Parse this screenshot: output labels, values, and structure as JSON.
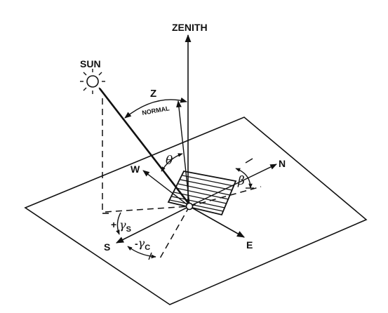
{
  "figure": {
    "labels": {
      "zenith": "ZENITH",
      "sun": "SUN",
      "zenith_angle": "Z",
      "normal": "NORMAL",
      "theta": "θ",
      "beta": "β",
      "west": "W",
      "north": "N",
      "south": "S",
      "east": "E",
      "plus": "+",
      "gamma": "γ",
      "gamma_s_sub": "S",
      "minus": "-",
      "gamma_c_sub": "C"
    },
    "colors": {
      "ink": "#111111",
      "background": "#ffffff"
    }
  }
}
